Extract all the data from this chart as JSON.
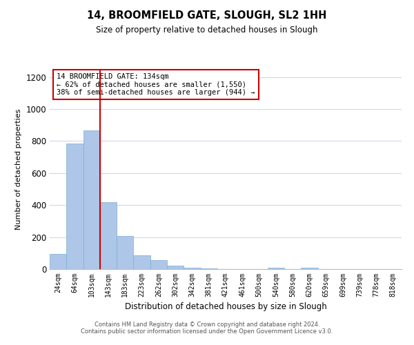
{
  "title": "14, BROOMFIELD GATE, SLOUGH, SL2 1HH",
  "subtitle": "Size of property relative to detached houses in Slough",
  "xlabel": "Distribution of detached houses by size in Slough",
  "ylabel": "Number of detached properties",
  "bar_labels": [
    "24sqm",
    "64sqm",
    "103sqm",
    "143sqm",
    "183sqm",
    "223sqm",
    "262sqm",
    "302sqm",
    "342sqm",
    "381sqm",
    "421sqm",
    "461sqm",
    "500sqm",
    "540sqm",
    "580sqm",
    "620sqm",
    "659sqm",
    "699sqm",
    "739sqm",
    "778sqm",
    "818sqm"
  ],
  "bar_values": [
    95,
    785,
    865,
    420,
    205,
    85,
    55,
    20,
    8,
    5,
    2,
    0,
    0,
    10,
    0,
    10,
    0,
    0,
    0,
    0,
    0
  ],
  "bar_color": "#aec6e8",
  "bar_edgecolor": "#7aafd4",
  "vline_color": "#cc0000",
  "vline_x_index": 2.5,
  "ylim": [
    0,
    1250
  ],
  "yticks": [
    0,
    200,
    400,
    600,
    800,
    1000,
    1200
  ],
  "annotation_title": "14 BROOMFIELD GATE: 134sqm",
  "annotation_line1": "← 62% of detached houses are smaller (1,550)",
  "annotation_line2": "38% of semi-detached houses are larger (944) →",
  "annotation_box_color": "#ffffff",
  "annotation_box_edgecolor": "#cc0000",
  "footer_line1": "Contains HM Land Registry data © Crown copyright and database right 2024.",
  "footer_line2": "Contains public sector information licensed under the Open Government Licence v3.0.",
  "background_color": "#ffffff",
  "grid_color": "#ccd9e8"
}
